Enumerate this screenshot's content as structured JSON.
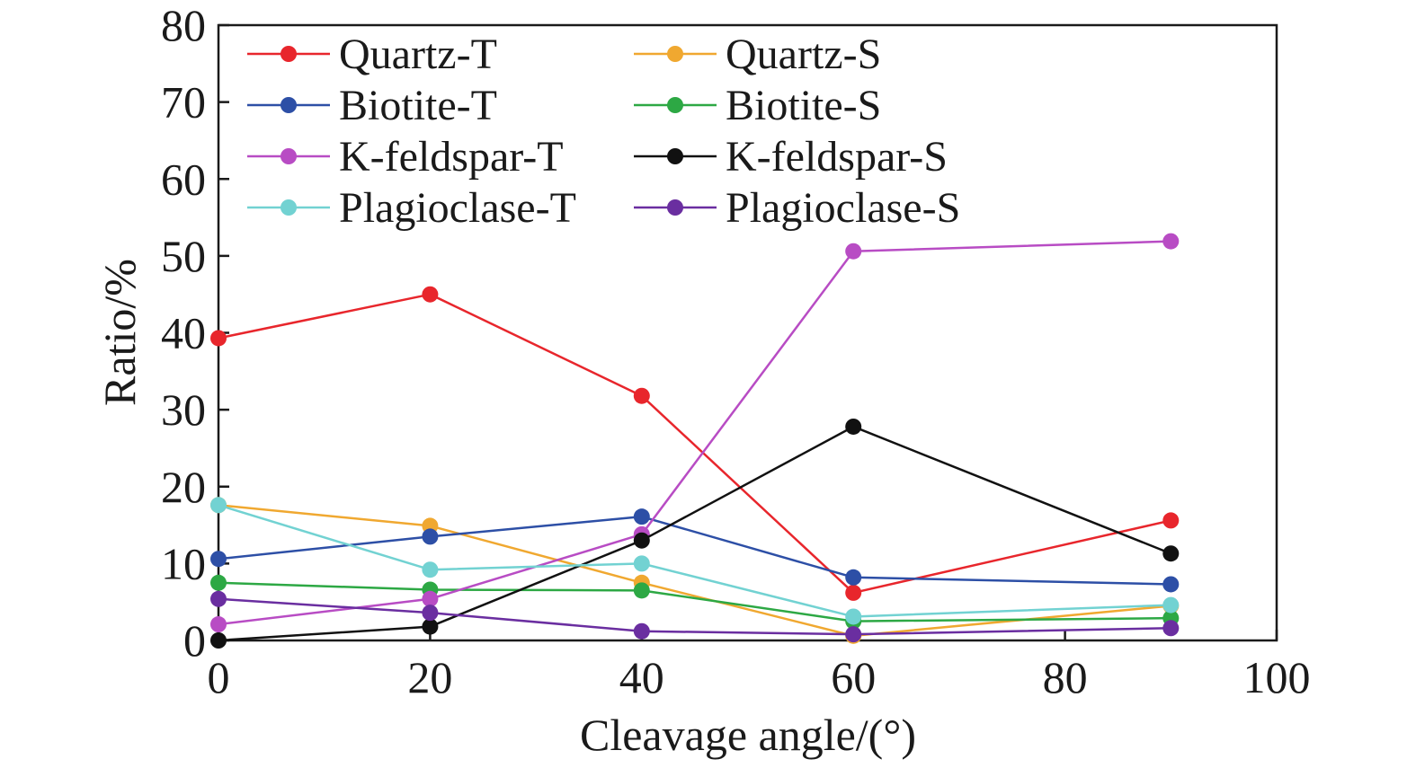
{
  "chart_data": {
    "type": "line",
    "title": "",
    "xlabel": "Cleavage angle/(°)",
    "ylabel": "Ratio/%",
    "xlim": [
      0,
      100
    ],
    "ylim": [
      0,
      80
    ],
    "xticks": [
      0,
      20,
      40,
      60,
      80,
      100
    ],
    "yticks": [
      0,
      10,
      20,
      30,
      40,
      50,
      60,
      70,
      80
    ],
    "x": [
      0,
      20,
      40,
      60,
      90
    ],
    "grid": false,
    "legend_position": "top-left",
    "series": [
      {
        "name": "Quartz-T",
        "color": "#e8262c",
        "values": [
          39.3,
          45.0,
          31.8,
          6.2,
          15.6
        ]
      },
      {
        "name": "Quartz-S",
        "color": "#f0a830",
        "values": [
          17.6,
          14.9,
          7.5,
          0.6,
          4.5
        ]
      },
      {
        "name": "Biotite-T",
        "color": "#2d4fa6",
        "values": [
          10.6,
          13.5,
          16.1,
          8.2,
          7.3
        ]
      },
      {
        "name": "Biotite-S",
        "color": "#2da844",
        "values": [
          7.5,
          6.6,
          6.5,
          2.5,
          2.9
        ]
      },
      {
        "name": "K-feldspar-T",
        "color": "#b84cc4",
        "values": [
          2.1,
          5.4,
          13.8,
          50.6,
          51.9
        ]
      },
      {
        "name": "K-feldspar-S",
        "color": "#111111",
        "values": [
          0.0,
          1.8,
          13.0,
          27.8,
          11.3
        ]
      },
      {
        "name": "Plagioclase-T",
        "color": "#72d2d2",
        "values": [
          17.6,
          9.2,
          10.0,
          3.1,
          4.6
        ]
      },
      {
        "name": "Plagioclase-S",
        "color": "#6a2ea0",
        "values": [
          5.4,
          3.6,
          1.2,
          0.8,
          1.6
        ]
      }
    ]
  }
}
